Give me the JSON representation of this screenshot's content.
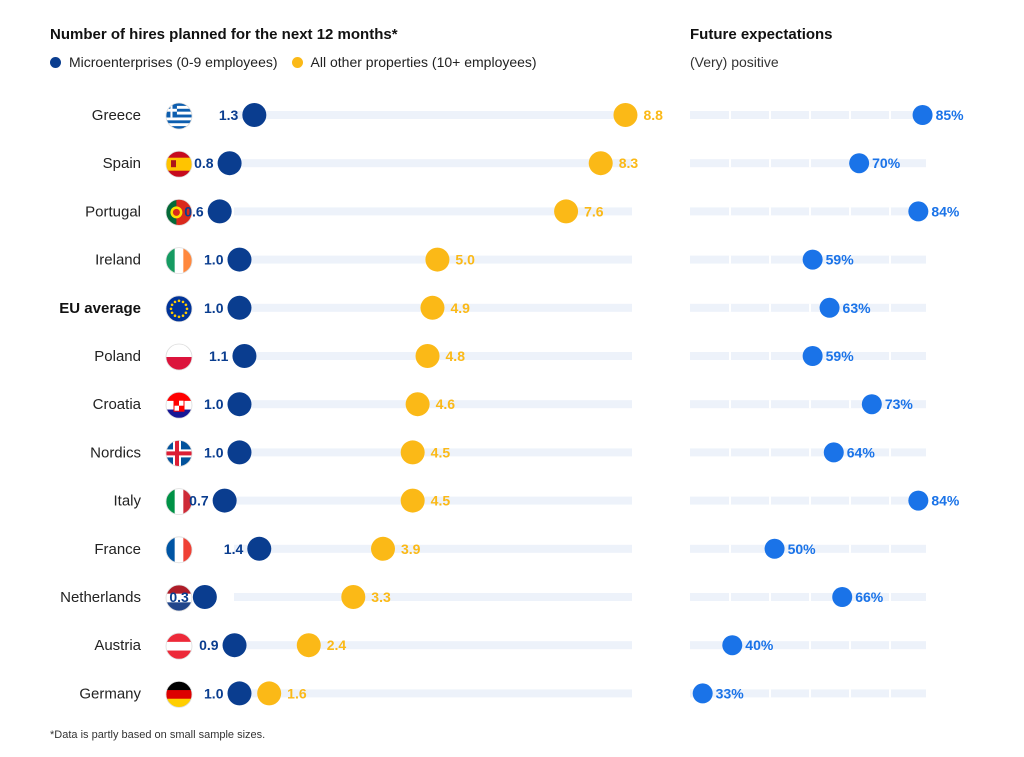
{
  "header": {
    "left_title": "Number of hires planned for the next 12 months*",
    "right_title": "Future expectations",
    "right_subtitle": "(Very) positive"
  },
  "legend": [
    {
      "label": "Microenterprises (0-9 employees)",
      "color": "#0a3d8f"
    },
    {
      "label": "All other properties (10+ employees)",
      "color": "#fbb917"
    }
  ],
  "footnote": "*Data is partly based on small sample sizes.",
  "colors": {
    "micro": "#0a3d8f",
    "other": "#fbb917",
    "expectation": "#1a73e8",
    "track": "#edf2fa"
  },
  "chart_data": [
    {
      "type": "dot-plot",
      "title": "Number of hires planned for the next 12 months*",
      "categories": [
        "Greece",
        "Spain",
        "Portugal",
        "Ireland",
        "EU average",
        "Poland",
        "Croatia",
        "Nordics",
        "Italy",
        "France",
        "Netherlands",
        "Austria",
        "Germany"
      ],
      "category_icons": [
        "flag-greece-icon",
        "flag-spain-icon",
        "flag-portugal-icon",
        "flag-ireland-icon",
        "flag-eu-icon",
        "flag-poland-icon",
        "flag-croatia-icon",
        "flag-nordics-icon",
        "flag-italy-icon",
        "flag-france-icon",
        "flag-netherlands-icon",
        "flag-austria-icon",
        "flag-germany-icon"
      ],
      "series": [
        {
          "name": "Microenterprises (0-9 employees)",
          "values": [
            1.3,
            0.8,
            0.6,
            1.0,
            1.0,
            1.1,
            1.0,
            1.0,
            0.7,
            1.4,
            0.3,
            0.9,
            1.0
          ],
          "labels": [
            "1.3",
            "0.8",
            "0.6",
            "1.0",
            "1.0",
            "1.1",
            "1.0",
            "1.0",
            "0.7",
            "1.4",
            "0.3",
            "0.9",
            "1.0"
          ]
        },
        {
          "name": "All other properties (10+ employees)",
          "values": [
            8.8,
            8.3,
            7.6,
            5.0,
            4.9,
            4.8,
            4.6,
            4.5,
            4.5,
            3.9,
            3.3,
            2.4,
            1.6
          ],
          "labels": [
            "8.8",
            "8.3",
            "7.6",
            "5.0",
            "4.9",
            "4.8",
            "4.6",
            "4.5",
            "4.5",
            "3.9",
            "3.3",
            "2.4",
            "1.6"
          ]
        }
      ],
      "xlim": [
        0,
        9.7
      ],
      "grid": false
    },
    {
      "type": "dot-plot",
      "title": "Future expectations",
      "subtitle": "(Very) positive",
      "categories": [
        "Greece",
        "Spain",
        "Portugal",
        "Ireland",
        "EU average",
        "Poland",
        "Croatia",
        "Nordics",
        "Italy",
        "France",
        "Netherlands",
        "Austria",
        "Germany"
      ],
      "series": [
        {
          "name": "(Very) positive",
          "values": [
            85,
            70,
            84,
            59,
            63,
            59,
            73,
            64,
            84,
            50,
            66,
            40,
            33
          ],
          "labels": [
            "85%",
            "70%",
            "84%",
            "59%",
            "63%",
            "59%",
            "73%",
            "64%",
            "84%",
            "50%",
            "66%",
            "40%",
            "33%"
          ]
        }
      ],
      "xlim": [
        30,
        100
      ],
      "grid": false
    }
  ]
}
